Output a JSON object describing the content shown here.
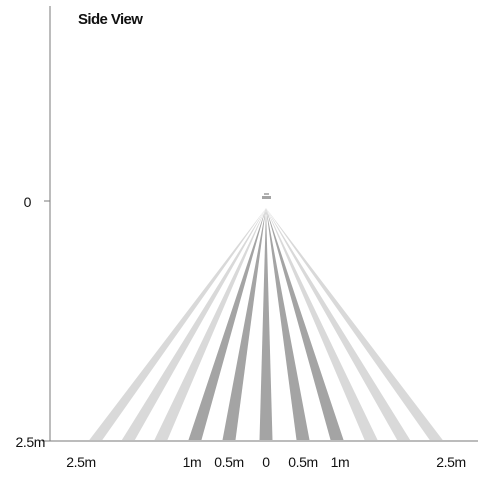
{
  "title": "Side View",
  "y_axis": {
    "top_label": "0",
    "bottom_label": "2.5m"
  },
  "x_axis": {
    "labels": [
      {
        "text": "2.5m",
        "value": -2.5
      },
      {
        "text": "1m",
        "value": -1.0
      },
      {
        "text": "0.5m",
        "value": -0.5
      },
      {
        "text": "0",
        "value": 0
      },
      {
        "text": "0.5m",
        "value": 0.5
      },
      {
        "text": "1m",
        "value": 1.0
      },
      {
        "text": "2.5m",
        "value": 2.5
      }
    ]
  },
  "colors": {
    "axis": "#7a7a7a",
    "zone_light": "#d9d9d9",
    "zone_dark": "#a4a4a4",
    "sensor": "#b5b5b5",
    "text": "#111111"
  },
  "sensor": {
    "icon": "motion-sensor-icon",
    "distance": 0
  },
  "zones": [
    {
      "center": -2.3,
      "shade": "light"
    },
    {
      "center": -1.86,
      "shade": "light"
    },
    {
      "center": -1.42,
      "shade": "light"
    },
    {
      "center": -0.96,
      "shade": "dark"
    },
    {
      "center": -0.5,
      "shade": "dark"
    },
    {
      "center": 0.0,
      "shade": "dark"
    },
    {
      "center": 0.5,
      "shade": "dark"
    },
    {
      "center": 0.96,
      "shade": "dark"
    },
    {
      "center": 1.42,
      "shade": "light"
    },
    {
      "center": 1.86,
      "shade": "light"
    },
    {
      "center": 2.3,
      "shade": "light"
    }
  ]
}
